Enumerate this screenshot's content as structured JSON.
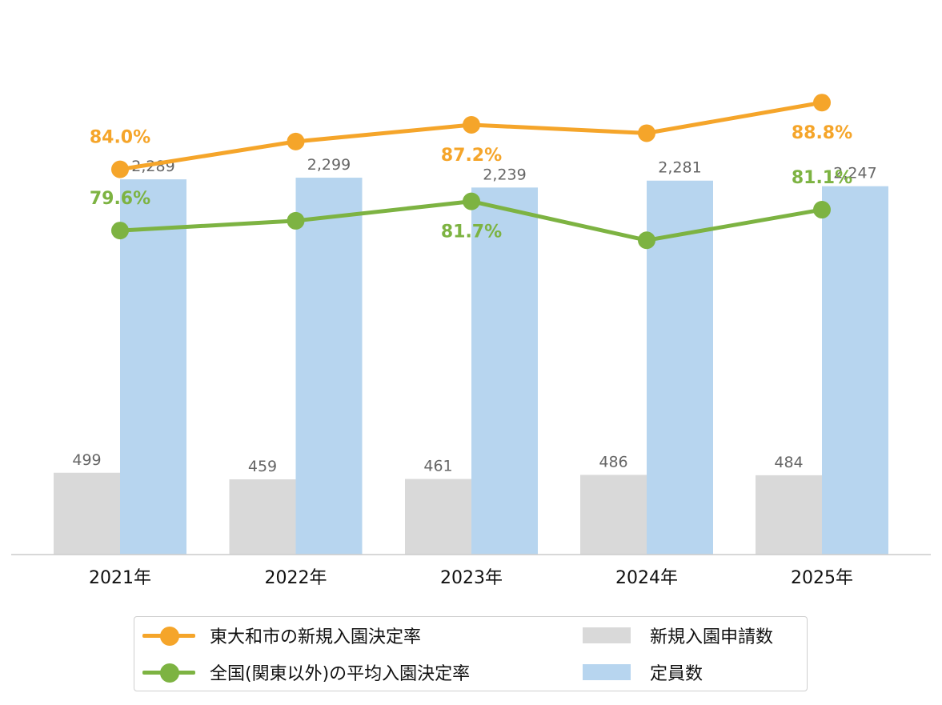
{
  "chart_data": {
    "type": "bar+line",
    "categories": [
      "2021年",
      "2022年",
      "2023年",
      "2024年",
      "2025年"
    ],
    "bar_series": [
      {
        "name": "新規入園申請数",
        "color": "#d9d9d9",
        "values": [
          499,
          459,
          461,
          486,
          484
        ],
        "labels": [
          "499",
          "459",
          "461",
          "486",
          "484"
        ]
      },
      {
        "name": "定員数",
        "color": "#b7d5ef",
        "values": [
          2289,
          2299,
          2239,
          2281,
          2247
        ],
        "labels": [
          "2,289",
          "2,299",
          "2,239",
          "2,281",
          "2,247"
        ]
      }
    ],
    "bar_axis": {
      "min": 0,
      "max": 3300
    },
    "line_series": [
      {
        "name": "東大和市の新規入園決定率",
        "color": "#F5A52A",
        "values": [
          84.0,
          86.0,
          87.2,
          86.6,
          88.8
        ],
        "labels": [
          "84.0%",
          "",
          "87.2%",
          "",
          "88.8%"
        ],
        "label_side": [
          "above",
          "",
          "below",
          "",
          "below"
        ]
      },
      {
        "name": "全国(関東以外)の平均入園決定率",
        "color": "#7DB342",
        "values": [
          79.6,
          80.3,
          81.7,
          78.9,
          81.1
        ],
        "labels": [
          "79.6%",
          "",
          "81.7%",
          "",
          "81.1%"
        ],
        "label_side": [
          "above",
          "",
          "below",
          "",
          "above"
        ]
      }
    ],
    "line_axis": {
      "min": 56.3,
      "max": 95.2
    },
    "legend_placement": "bottom",
    "grid": false
  }
}
